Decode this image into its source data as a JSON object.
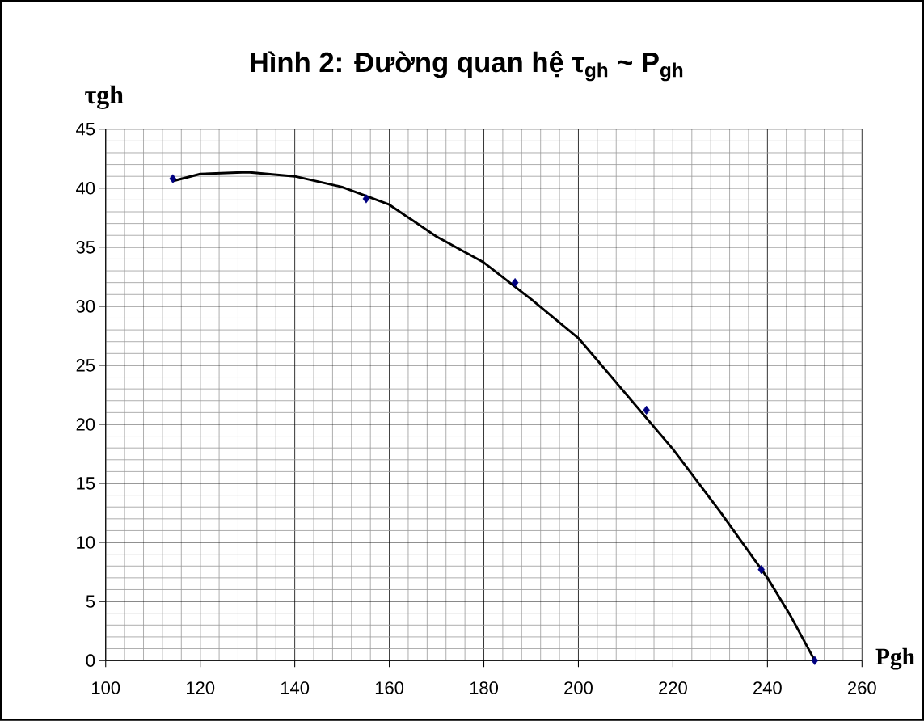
{
  "chart_data": {
    "type": "scatter",
    "title": "Hình 2: Đường quan hệ τ$_{gh}$ ~ P$_{gh}$",
    "xlabel": "Pgh",
    "ylabel": "τgh",
    "xlim": [
      100,
      260
    ],
    "ylim": [
      0,
      45
    ],
    "xticks": [
      100,
      120,
      140,
      160,
      180,
      200,
      220,
      240,
      260
    ],
    "yticks": [
      0,
      5,
      10,
      15,
      20,
      25,
      30,
      35,
      40,
      45
    ],
    "grid": true,
    "series": [
      {
        "marker": "diamond",
        "color": "#000080",
        "x": [
          114.2,
          155.1,
          186.6,
          214.4,
          238.7,
          250
        ],
        "values": [
          40.8,
          39.1,
          32.0,
          21.2,
          7.7,
          0
        ]
      },
      {
        "type": "line",
        "marker": "none",
        "color": "#000000",
        "line_style": "solid",
        "x": [
          114.2,
          120,
          130,
          140,
          150,
          160,
          170,
          180,
          190,
          200,
          210,
          220,
          230,
          240,
          245,
          250
        ],
        "values": [
          40.6,
          41.2,
          41.35,
          41.0,
          40.1,
          38.6,
          35.9,
          33.7,
          30.6,
          27.3,
          22.6,
          17.9,
          12.6,
          7.0,
          3.7,
          0
        ]
      }
    ]
  }
}
